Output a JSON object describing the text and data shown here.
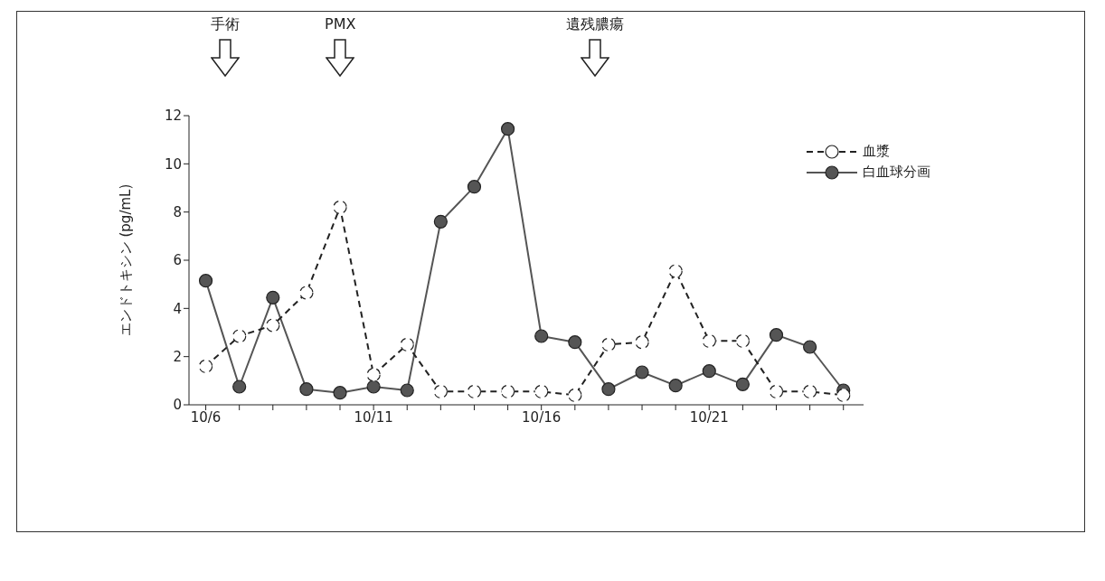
{
  "chart_data": {
    "type": "line",
    "ylabel": "エンドトキシン (pg/mL)",
    "categories": [
      "10/6",
      null,
      null,
      null,
      null,
      "10/11",
      null,
      null,
      null,
      null,
      "10/16",
      null,
      null,
      null,
      null,
      "10/21",
      null,
      null,
      null,
      null
    ],
    "series": [
      {
        "name": "血漿",
        "color": "#222222",
        "line_style": "dashed",
        "values": [
          1.6,
          2.85,
          3.3,
          4.65,
          8.2,
          1.25,
          2.5,
          0.55,
          0.55,
          0.55,
          0.55,
          0.4,
          2.5,
          2.6,
          5.55,
          2.65,
          2.65,
          0.55,
          0.55,
          0.4
        ]
      },
      {
        "name": "白血球分画",
        "color": "#555555",
        "line_style": "solid",
        "values": [
          5.15,
          0.75,
          4.45,
          0.65,
          0.5,
          0.75,
          0.6,
          7.6,
          9.05,
          11.45,
          2.85,
          2.6,
          0.65,
          1.35,
          0.8,
          1.4,
          0.85,
          2.9,
          2.4,
          0.6
        ]
      }
    ],
    "ylim": [
      0,
      12
    ],
    "yticks": [
      0,
      2,
      4,
      6,
      8,
      10,
      12
    ],
    "grid": false,
    "legend": "top right",
    "marker": "circle",
    "annotations": [
      "手術",
      "PMX",
      "遺残膿瘍"
    ]
  }
}
